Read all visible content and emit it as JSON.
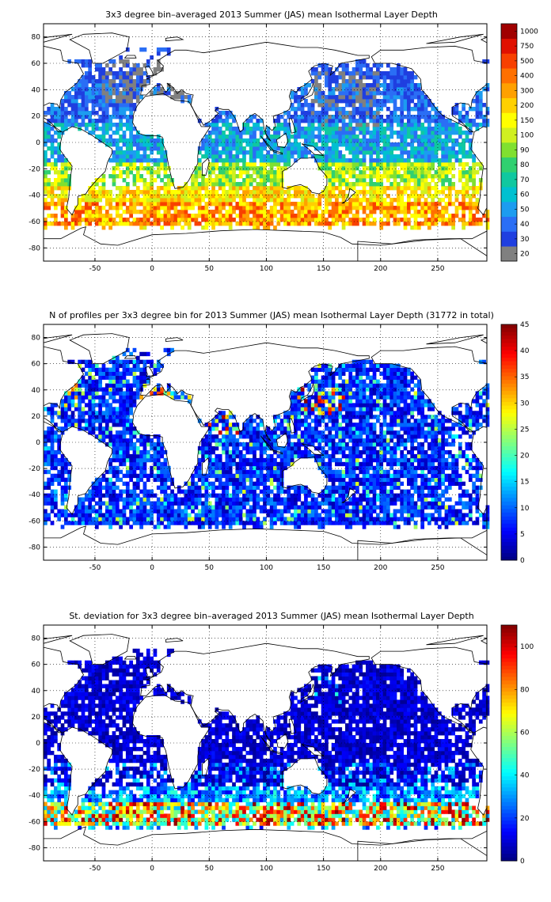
{
  "chart_data": [
    {
      "type": "heatmap",
      "title": "3x3 degree bin–averaged 2013 Summer (JAS) mean Isothermal Layer Depth",
      "xlim": [
        -95,
        293
      ],
      "ylim": [
        -90,
        90
      ],
      "xticks": [
        -50,
        0,
        50,
        100,
        150,
        200,
        250
      ],
      "yticks": [
        -80,
        -60,
        -40,
        -20,
        0,
        20,
        40,
        60,
        80
      ],
      "grid": true,
      "bin_size_deg": 3,
      "colorbar": {
        "scale": "categorical",
        "labels": [
          "20",
          "30",
          "40",
          "50",
          "60",
          "70",
          "80",
          "90",
          "100",
          "150",
          "200",
          "300",
          "400",
          "500",
          "750",
          "1000"
        ],
        "colors": [
          "#808080",
          "#1f3fe0",
          "#2a6ef5",
          "#1c9cf0",
          "#00c0d0",
          "#10c8a0",
          "#30d070",
          "#80e030",
          "#d0f020",
          "#ffff00",
          "#ffd000",
          "#ffa000",
          "#ff7000",
          "#f84000",
          "#e01000",
          "#a00000"
        ]
      },
      "pattern": "Deep mixed/isothermal layers (300-500 m) along 40-60S in the Southern Ocean; 100-200 m in the subtropical South Pacific/Indian; shallow (30-60 m) across tropics and North Pacific; grey (<=20) patches in the North Atlantic and western North Pacific"
    },
    {
      "type": "heatmap",
      "title": "N of profiles per 3x3 degree bin for 2013 Summer (JAS) mean Isothermal Layer Depth  (31772 in total)",
      "xlim": [
        -95,
        293
      ],
      "ylim": [
        -90,
        90
      ],
      "xticks": [
        -50,
        0,
        50,
        100,
        150,
        200,
        250
      ],
      "yticks": [
        -80,
        -60,
        -40,
        -20,
        0,
        20,
        40,
        60,
        80
      ],
      "grid": true,
      "bin_size_deg": 3,
      "colorbar": {
        "scale": "linear",
        "min": 0,
        "max": 45,
        "ticks": [
          0,
          5,
          10,
          15,
          20,
          25,
          30,
          35,
          40,
          45
        ]
      },
      "pattern": "Mostly 2-10 profiles per bin; higher counts (25-45) in the Kuroshio region near Japan, the Arabian Sea, Mediterranean and US east coast"
    },
    {
      "type": "heatmap",
      "title": "St. deviation for 3x3 degree bin–averaged 2013 Summer (JAS) mean Isothermal Layer Depth",
      "xlim": [
        -95,
        293
      ],
      "ylim": [
        -90,
        90
      ],
      "xticks": [
        -50,
        0,
        50,
        100,
        150,
        200,
        250
      ],
      "yticks": [
        -80,
        -60,
        -40,
        -20,
        0,
        20,
        40,
        60,
        80
      ],
      "grid": true,
      "bin_size_deg": 3,
      "colorbar": {
        "scale": "linear",
        "min": 0,
        "max": 110,
        "ticks": [
          0,
          20,
          40,
          60,
          80,
          100
        ]
      },
      "pattern": "Low variability (0-20) in most basins; high standard deviation (60-110) concentrated in the Southern Ocean band 45-60S"
    }
  ]
}
